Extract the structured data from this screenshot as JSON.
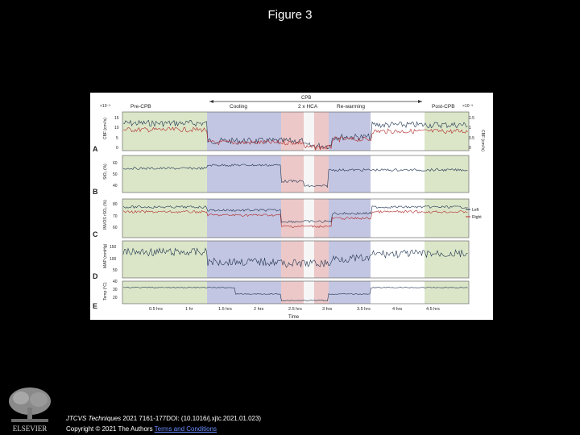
{
  "slide": {
    "title": "Figure 3"
  },
  "figure": {
    "phase_bar_label": "CPB",
    "phases": [
      "Pre-CPB",
      "Cooling",
      "2 x HCA",
      "Re-warming",
      "Post-CPB"
    ],
    "scale_left": "×10⁻³",
    "scale_right": "×10⁻³",
    "right_axis_label": "CBF (cm²/s)",
    "legend": {
      "left": "Left",
      "right": "Right"
    },
    "panels": [
      {
        "letter": "A",
        "ylabel": "CBF (cm²/s)",
        "ticks": [
          "15",
          "10",
          "5",
          "0"
        ],
        "right_ticks": [
          "1.5",
          "1",
          "0.5",
          "0"
        ]
      },
      {
        "letter": "B",
        "ylabel": "StO₂ (%)",
        "ticks": [
          "60",
          "50",
          "40"
        ]
      },
      {
        "letter": "C",
        "ylabel": "INVOS rSO₂ (%)",
        "ticks": [
          "80",
          "70",
          "60"
        ]
      },
      {
        "letter": "D",
        "ylabel": "MAP (mmHg)",
        "ticks": [
          "150",
          "100",
          "50"
        ]
      },
      {
        "letter": "E",
        "ylabel": "Temp (°C)",
        "ticks": [
          "40",
          "30",
          "20"
        ]
      }
    ],
    "xticks": [
      "0.5 hrs",
      "1 hr",
      "1.5 hrs",
      "2 hrs",
      "2.5 hrs",
      "3 hrs",
      "3.5 hrs",
      "4 hrs",
      "4.5 hrs"
    ],
    "xlabel": "Time",
    "colors": {
      "pre_post": "#dbe6c8",
      "cooling": "#c3c6e2",
      "hca": "#ecc8c8",
      "trace_dark": "#1f3350",
      "trace_red": "#b02828"
    }
  },
  "footer": {
    "citation_journal": "JTCVS Techniques",
    "citation_rest": " 2021 7161-177DOI: (10.1016/j.xjtc.2021.01.023)",
    "copyright_text": "Copyright © 2021 The Authors ",
    "license_text": "Terms and Conditions"
  },
  "logo": {
    "icon": "elsevier-tree-logo",
    "wordmark": "ELSEVIER"
  }
}
